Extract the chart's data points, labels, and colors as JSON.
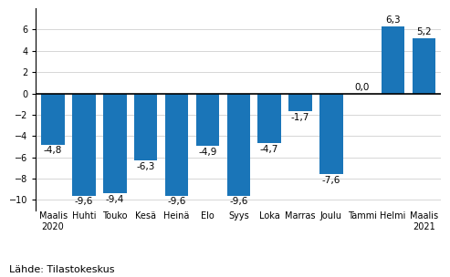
{
  "categories": [
    "Maalis\n2020",
    "Huhti",
    "Touko",
    "Kesä",
    "Heinä",
    "Elo",
    "Syys",
    "Loka",
    "Marras",
    "Joulu",
    "Tammi",
    "Helmi",
    "Maalis\n2021"
  ],
  "values": [
    -4.8,
    -9.6,
    -9.4,
    -6.3,
    -9.6,
    -4.9,
    -9.6,
    -4.7,
    -1.7,
    -7.6,
    0.0,
    6.3,
    5.2
  ],
  "bar_color": "#1a75b8",
  "ylim": [
    -11,
    8
  ],
  "yticks": [
    -10,
    -8,
    -6,
    -4,
    -2,
    0,
    2,
    4,
    6
  ],
  "footer": "Lähde: Tilastokeskus",
  "label_fontsize": 7.5,
  "tick_fontsize": 7.0,
  "footer_fontsize": 8,
  "bar_width": 0.75
}
